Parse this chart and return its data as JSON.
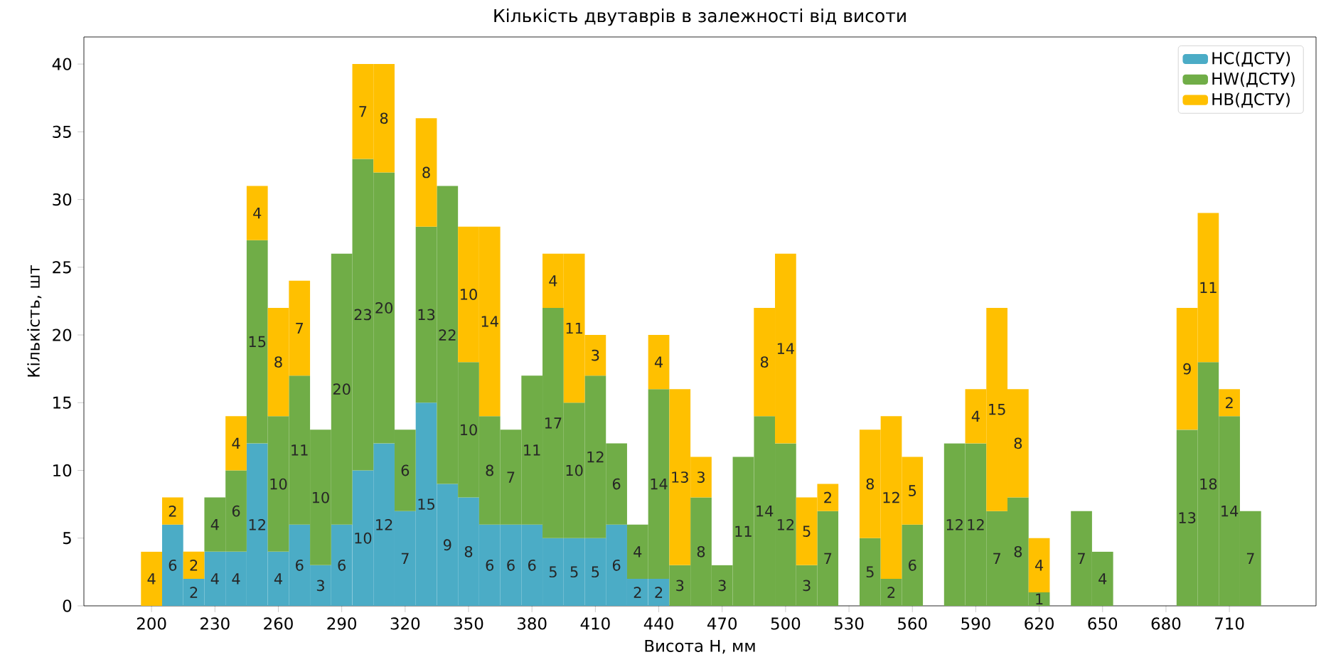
{
  "chart_data": {
    "type": "bar",
    "title": "Кількість двутаврів в залежності від висоти",
    "xlabel": "Висота H, мм",
    "ylabel": "Кількість, шт",
    "x": [
      200,
      210,
      220,
      230,
      240,
      250,
      260,
      270,
      280,
      290,
      300,
      310,
      320,
      330,
      340,
      350,
      360,
      370,
      380,
      390,
      400,
      410,
      420,
      430,
      440,
      450,
      460,
      470,
      480,
      490,
      500,
      510,
      520,
      530,
      540,
      550,
      560,
      570,
      580,
      590,
      600,
      610,
      620,
      630,
      640,
      650,
      660,
      670,
      680,
      690,
      700,
      710,
      720
    ],
    "stacked": true,
    "data_labels": true,
    "legend": "top right",
    "series": [
      {
        "name": "HC(ДСТУ)",
        "color": "#4bacc6",
        "values": [
          null,
          6,
          2,
          4,
          4,
          12,
          4,
          6,
          3,
          6,
          10,
          12,
          7,
          15,
          9,
          8,
          6,
          6,
          6,
          5,
          5,
          5,
          6,
          2,
          2,
          null,
          null,
          null,
          null,
          null,
          null,
          null,
          null,
          null,
          null,
          null,
          null,
          null,
          null,
          null,
          null,
          null,
          null,
          null,
          null,
          null,
          null,
          null,
          null,
          null,
          null,
          null,
          null
        ]
      },
      {
        "name": "HW(ДСТУ)",
        "color": "#70ad47",
        "values": [
          null,
          null,
          null,
          4,
          6,
          15,
          10,
          11,
          10,
          20,
          23,
          20,
          6,
          13,
          22,
          10,
          8,
          7,
          11,
          17,
          10,
          12,
          6,
          4,
          14,
          3,
          8,
          3,
          11,
          14,
          12,
          3,
          7,
          null,
          5,
          2,
          6,
          null,
          12,
          12,
          7,
          8,
          1,
          null,
          7,
          4,
          null,
          null,
          null,
          13,
          18,
          14,
          7
        ]
      },
      {
        "name": "HB(ДСТУ)",
        "color": "#ffc000",
        "values": [
          4,
          2,
          2,
          null,
          4,
          4,
          8,
          7,
          null,
          null,
          7,
          8,
          null,
          8,
          null,
          10,
          14,
          null,
          null,
          4,
          11,
          3,
          null,
          null,
          4,
          13,
          3,
          null,
          null,
          8,
          14,
          5,
          2,
          null,
          8,
          12,
          5,
          null,
          null,
          4,
          15,
          8,
          4,
          null,
          null,
          null,
          null,
          null,
          null,
          9,
          11,
          2,
          null
        ]
      }
    ],
    "xlim": [
      168,
      751
    ],
    "ylim": [
      0,
      42
    ],
    "xticks": [
      200,
      230,
      260,
      290,
      320,
      350,
      380,
      410,
      440,
      470,
      500,
      530,
      560,
      590,
      620,
      650,
      680,
      710
    ],
    "yticks": [
      0,
      5,
      10,
      15,
      20,
      25,
      30,
      35,
      40
    ]
  }
}
